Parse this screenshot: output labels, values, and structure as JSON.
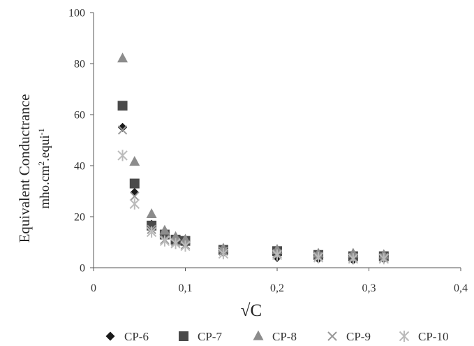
{
  "chart_data": {
    "type": "scatter",
    "title": "",
    "xlabel": "√C",
    "ylabel": {
      "line1": "Equivalent Conductrance",
      "line2_prefix": "mho.cm",
      "line2_sup1": "2",
      "line2_mid": ".equi",
      "line2_sup2": "-1"
    },
    "xlim": [
      0,
      0.4
    ],
    "ylim": [
      0,
      100
    ],
    "x_ticks": [
      {
        "value": 0,
        "label": "0"
      },
      {
        "value": 0.1,
        "label": "0,1"
      },
      {
        "value": 0.2,
        "label": "0,2"
      },
      {
        "value": 0.3,
        "label": "0,3"
      },
      {
        "value": 0.4,
        "label": "0,4"
      }
    ],
    "y_ticks": [
      {
        "value": 0,
        "label": "0"
      },
      {
        "value": 20,
        "label": "20"
      },
      {
        "value": 40,
        "label": "40"
      },
      {
        "value": 60,
        "label": "60"
      },
      {
        "value": 80,
        "label": "80"
      },
      {
        "value": 100,
        "label": "100"
      }
    ],
    "grid": false,
    "legend_position": "bottom",
    "series": [
      {
        "name": "CP-6",
        "marker": "diamond",
        "color": "#1a1a1a",
        "x": [
          0.0316,
          0.0447,
          0.0632,
          0.0775,
          0.0894,
          0.1,
          0.1414,
          0.2,
          0.2449,
          0.2828,
          0.3162
        ],
        "y": [
          55,
          29.5,
          17,
          12.5,
          10.5,
          9.5,
          6,
          4,
          3.5,
          3,
          3.5
        ]
      },
      {
        "name": "CP-7",
        "marker": "square",
        "color": "#4a4a4a",
        "x": [
          0.0316,
          0.0447,
          0.0632,
          0.0775,
          0.0894,
          0.1,
          0.1414,
          0.2,
          0.2449,
          0.2828,
          0.3162
        ],
        "y": [
          63.5,
          33,
          16.5,
          13,
          11,
          10.5,
          7,
          6.5,
          5,
          4.5,
          4.5
        ]
      },
      {
        "name": "CP-8",
        "marker": "triangle",
        "color": "#8c8c8c",
        "x": [
          0.0316,
          0.0447,
          0.0632,
          0.0775,
          0.0894,
          0.1,
          0.1414,
          0.2,
          0.2449,
          0.2828,
          0.3162
        ],
        "y": [
          82,
          41.5,
          21,
          14.5,
          12,
          11,
          7.5,
          7,
          5.5,
          5.5,
          5
        ]
      },
      {
        "name": "CP-9",
        "marker": "x",
        "color": "#999999",
        "x": [
          0.0316,
          0.0447,
          0.0632,
          0.0775,
          0.0894,
          0.1,
          0.1414,
          0.2,
          0.2449,
          0.2828,
          0.3162
        ],
        "y": [
          54,
          28,
          15,
          11,
          10,
          9,
          6.5,
          5.5,
          4.5,
          4,
          4
        ]
      },
      {
        "name": "CP-10",
        "marker": "asterisk",
        "color": "#bbbbbb",
        "x": [
          0.0316,
          0.0447,
          0.0632,
          0.0775,
          0.0894,
          0.1,
          0.1414,
          0.2,
          0.2449,
          0.2828,
          0.3162
        ],
        "y": [
          44,
          25,
          14,
          10.5,
          9.5,
          8.5,
          5.5,
          5,
          4,
          3.5,
          3.5
        ]
      }
    ]
  }
}
